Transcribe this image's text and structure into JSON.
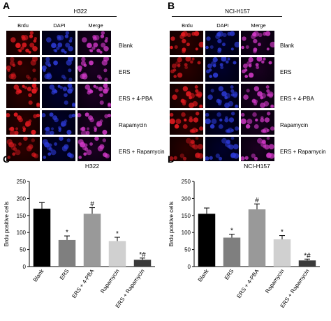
{
  "panels": {
    "A": {
      "letter": "A",
      "title": "H322"
    },
    "B": {
      "letter": "B",
      "title": "NCI-H157"
    },
    "C": {
      "letter": "C"
    },
    "D": {
      "letter": "D"
    }
  },
  "columns": [
    "Brdu",
    "DAPI",
    "Merge"
  ],
  "rows": [
    "Blank",
    "ERS",
    "ERS + 4-PBA",
    "Rapamycin",
    "ERS + Rapamycin"
  ],
  "colors": {
    "brdu": "#e0191f",
    "dapi": "#2c3ad6",
    "merge": "#d238c8"
  },
  "chart_data": [
    {
      "type": "bar",
      "title": "H322",
      "ylabel": "Brdu positive cells",
      "ylim": [
        0,
        250
      ],
      "yticks": [
        "0",
        "50",
        "100",
        "150",
        "200",
        "250"
      ],
      "categories": [
        "Blank",
        "ERS",
        "ERS + 4-PBA",
        "Rapamycin",
        "ERS + Rapamycin"
      ],
      "values": [
        170,
        78,
        155,
        75,
        20
      ],
      "errors": [
        18,
        12,
        18,
        11,
        5
      ],
      "bar_colors": [
        "#000000",
        "#7f7f7f",
        "#999999",
        "#d0d0d0",
        "#3a3a3a"
      ],
      "annotations": [
        "",
        "*",
        "#",
        "*",
        "*#"
      ]
    },
    {
      "type": "bar",
      "title": "NCI-H157",
      "ylabel": "Brdu positive cells",
      "ylim": [
        0,
        250
      ],
      "yticks": [
        "0",
        "50",
        "100",
        "150",
        "200",
        "250"
      ],
      "categories": [
        "Blank",
        "ERS",
        "ERS + 4-PBA",
        "Rapamycin",
        "ERS + Rapamycin"
      ],
      "values": [
        155,
        85,
        168,
        80,
        18
      ],
      "errors": [
        17,
        10,
        16,
        11,
        4
      ],
      "bar_colors": [
        "#000000",
        "#7f7f7f",
        "#999999",
        "#d0d0d0",
        "#3a3a3a"
      ],
      "annotations": [
        "",
        "*",
        "#",
        "*",
        "*#"
      ]
    }
  ]
}
